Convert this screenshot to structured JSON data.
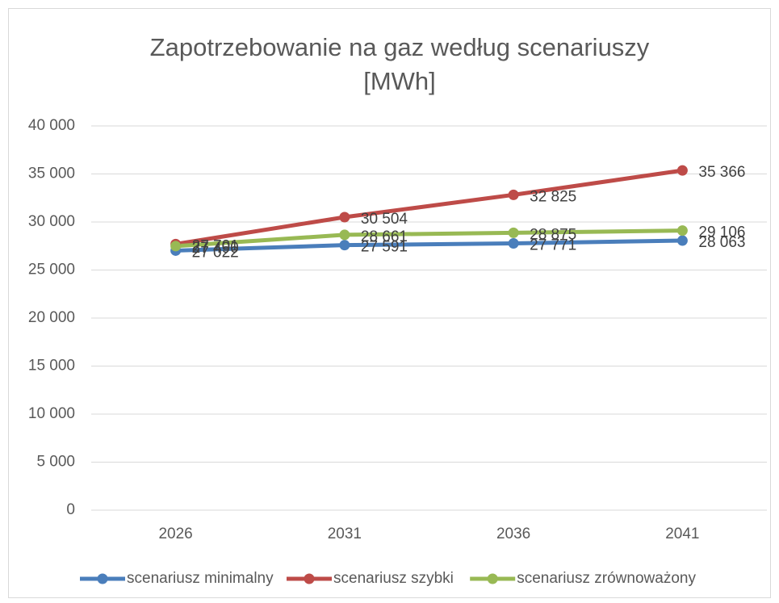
{
  "chart_data": {
    "type": "line",
    "title": "Zapotrzebowanie na gaz według scenariuszy [MWh]",
    "categories": [
      "2026",
      "2031",
      "2036",
      "2041"
    ],
    "series": [
      {
        "name": "scenariusz minimalny",
        "color": "#4a7ebb",
        "values": [
          27022,
          27591,
          27771,
          28063
        ],
        "value_labels": [
          "27 022",
          "27 591",
          "27 771",
          "28 063"
        ]
      },
      {
        "name": "scenariusz szybki",
        "color": "#be4b48",
        "values": [
          27701,
          30504,
          32825,
          35366
        ],
        "value_labels": [
          "27 701",
          "30 504",
          "32 825",
          "35 366"
        ]
      },
      {
        "name": "scenariusz zrównoważony",
        "color": "#98b954",
        "values": [
          27490,
          28661,
          28875,
          29106
        ],
        "value_labels": [
          "27 490",
          "28 661",
          "28 875",
          "29 106"
        ]
      }
    ],
    "ylim": [
      0,
      40000
    ],
    "yticks": [
      {
        "value": 0,
        "label": "0"
      },
      {
        "value": 5000,
        "label": "5 000"
      },
      {
        "value": 10000,
        "label": "10 000"
      },
      {
        "value": 15000,
        "label": "15 000"
      },
      {
        "value": 20000,
        "label": "20 000"
      },
      {
        "value": 25000,
        "label": "25 000"
      },
      {
        "value": 30000,
        "label": "30 000"
      },
      {
        "value": 35000,
        "label": "35 000"
      },
      {
        "value": 40000,
        "label": "40 000"
      }
    ],
    "grid": true,
    "legend": "bottom"
  }
}
